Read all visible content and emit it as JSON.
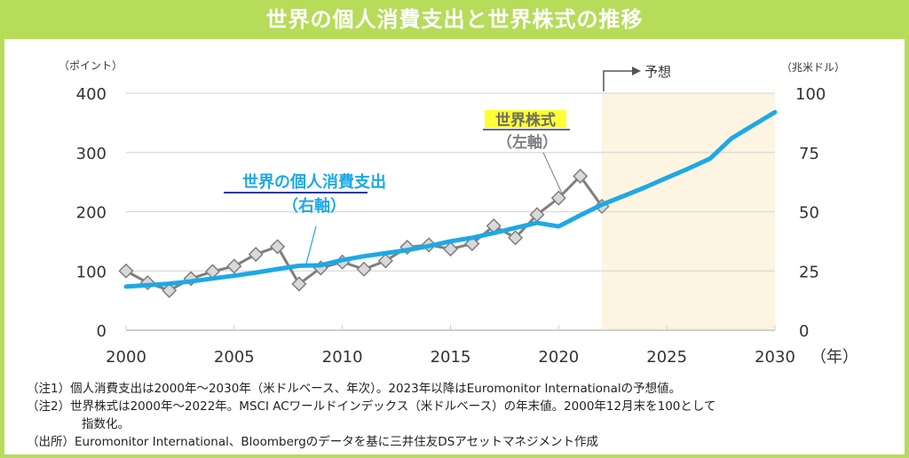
{
  "title": "世界の個人消費支出と世界株式の推移",
  "colors": {
    "header": "#b6dc5a",
    "consumption": "#1ea8e6",
    "stock_line": "#7f7f7f",
    "stock_marker": "#d9d9d9",
    "forecast_band": "#fdf5e1",
    "stock_highlight": "#ffff33",
    "consumption_underline": "#2b3a9c"
  },
  "chart_data": {
    "type": "line",
    "title": "世界の個人消費支出と世界株式の推移",
    "xlabel": "（年）",
    "ylabel_left": "（ポイント）",
    "ylabel_right": "（兆米ドル）",
    "x_ticks": [
      "2000",
      "2005",
      "2010",
      "2015",
      "2020",
      "2025",
      "2030"
    ],
    "xlim": [
      2000,
      2030
    ],
    "y_left_ticks": [
      "0",
      "100",
      "200",
      "300",
      "400"
    ],
    "ylim_left": [
      0,
      400
    ],
    "y_right_ticks": [
      "0",
      "25",
      "50",
      "75",
      "100"
    ],
    "ylim_right": [
      0,
      100
    ],
    "grid": "horizontal",
    "forecast_region": {
      "from": 2022,
      "to": 2030,
      "label": "予想"
    },
    "series": [
      {
        "name": "世界の個人消費支出",
        "annotation": "世界の個人消費支出",
        "annotation_sub": "（右軸）",
        "axis": "right",
        "x": [
          2000,
          2001,
          2002,
          2003,
          2004,
          2005,
          2006,
          2007,
          2008,
          2009,
          2010,
          2011,
          2012,
          2013,
          2014,
          2015,
          2016,
          2017,
          2018,
          2019,
          2020,
          2021,
          2022,
          2023,
          2024,
          2025,
          2026,
          2027,
          2028,
          2029,
          2030
        ],
        "values": [
          18.4,
          19.0,
          19.6,
          20.6,
          21.8,
          23.0,
          24.3,
          25.8,
          27.2,
          27.4,
          29.6,
          31.2,
          32.5,
          33.8,
          35.5,
          37.5,
          39.0,
          41.0,
          43.2,
          45.3,
          43.8,
          48.5,
          53.0,
          56.6,
          60.3,
          64.3,
          68.2,
          72.4,
          81.0,
          86.5,
          92.0
        ]
      },
      {
        "name": "世界株式",
        "annotation": "世界株式",
        "annotation_sub": "（左軸）",
        "axis": "left",
        "x": [
          2000,
          2001,
          2002,
          2003,
          2004,
          2005,
          2006,
          2007,
          2008,
          2009,
          2010,
          2011,
          2012,
          2013,
          2014,
          2015,
          2016,
          2017,
          2018,
          2019,
          2020,
          2021,
          2022
        ],
        "values": [
          100,
          80,
          67,
          87,
          99,
          108,
          128,
          141,
          78,
          105,
          115,
          103,
          117,
          140,
          144,
          137,
          146,
          176,
          156,
          195,
          223,
          260,
          209
        ]
      }
    ]
  },
  "notes": [
    {
      "label": "（注1）",
      "text": "個人消費支出は2000年～2030年（米ドルベース、年次）。2023年以降はEuromonitor Internationalの予想値。"
    },
    {
      "label": "（注2）",
      "text": "世界株式は2000年～2022年。MSCI ACワールドインデックス（米ドルベース）の年末値。2000年12月末を100として"
    },
    {
      "label": "",
      "text": "指数化。"
    },
    {
      "label": "（出所）",
      "text": "Euromonitor International、Bloombergのデータを基に三井住友DSアセットマネジメント作成"
    }
  ]
}
